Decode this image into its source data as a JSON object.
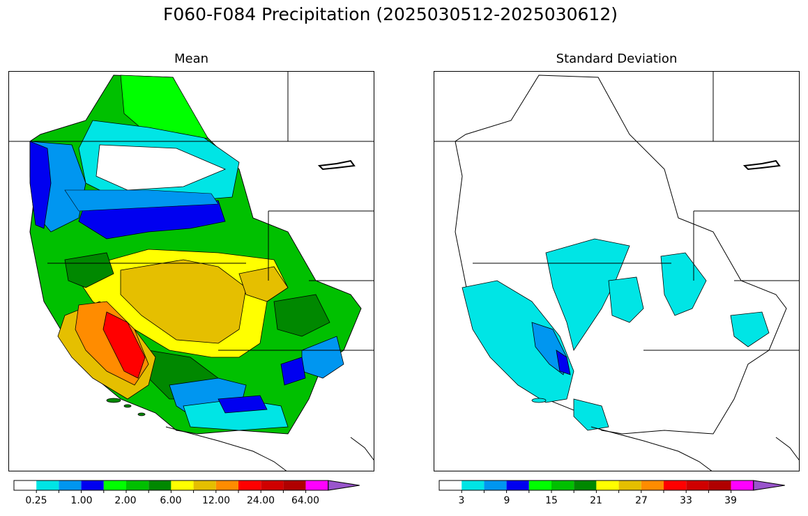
{
  "title": "F060-F084 Precipitation (2025030512-2025030612)",
  "panels": {
    "mean": {
      "title": "Mean"
    },
    "std": {
      "title": "Standard Deviation"
    }
  },
  "colorbar_colors": [
    "#ffffff",
    "#00e5e5",
    "#0096f0",
    "#0000f0",
    "#00ff00",
    "#00c000",
    "#008800",
    "#ffff00",
    "#e5bf00",
    "#ff8c00",
    "#ff0000",
    "#d00000",
    "#b00000",
    "#ff00ff",
    "#9955cc"
  ],
  "mean_colorbar": {
    "tick_labels": [
      "0.25",
      "1.00",
      "2.00",
      "6.00",
      "12.00",
      "24.00",
      "64.00"
    ]
  },
  "std_colorbar": {
    "tick_labels": [
      "3",
      "9",
      "15",
      "21",
      "27",
      "33",
      "39"
    ]
  },
  "icons": {
    "extend_arrow": "triangle-right-icon"
  }
}
